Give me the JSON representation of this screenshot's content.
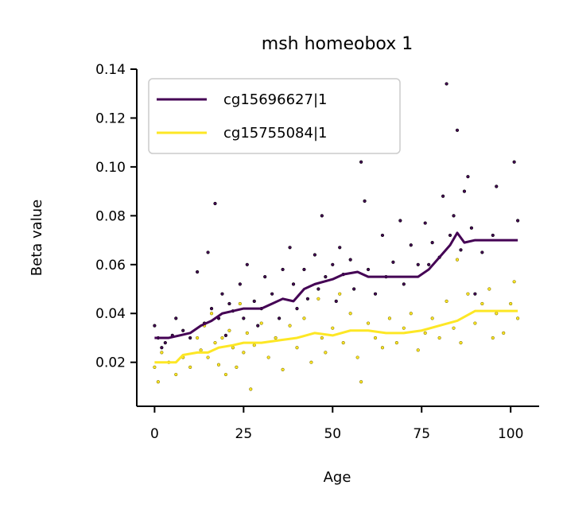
{
  "chart_data": {
    "type": "scatter",
    "title": "msh homeobox 1",
    "xlabel": "Age",
    "ylabel": "Beta value",
    "xlim": [
      -5,
      108
    ],
    "ylim": [
      0.002,
      0.14
    ],
    "xticks": [
      0,
      25,
      50,
      75,
      100
    ],
    "yticks": [
      0.02,
      0.04,
      0.06,
      0.08,
      0.1,
      0.12,
      0.14
    ],
    "xtick_labels": [
      "0",
      "25",
      "50",
      "75",
      "100"
    ],
    "ytick_labels": [
      "0.02",
      "0.04",
      "0.06",
      "0.08",
      "0.10",
      "0.12",
      "0.14"
    ],
    "grid": false,
    "legend_position": "top-left",
    "series": [
      {
        "name": "cg15696627|1",
        "color": "#440154",
        "trend": [
          [
            0,
            0.03
          ],
          [
            4,
            0.03
          ],
          [
            7,
            0.031
          ],
          [
            10,
            0.032
          ],
          [
            13,
            0.035
          ],
          [
            16,
            0.037
          ],
          [
            19,
            0.04
          ],
          [
            22,
            0.041
          ],
          [
            25,
            0.042
          ],
          [
            30,
            0.042
          ],
          [
            33,
            0.044
          ],
          [
            36,
            0.046
          ],
          [
            39,
            0.045
          ],
          [
            42,
            0.05
          ],
          [
            45,
            0.052
          ],
          [
            50,
            0.054
          ],
          [
            53,
            0.056
          ],
          [
            57,
            0.057
          ],
          [
            60,
            0.055
          ],
          [
            65,
            0.055
          ],
          [
            70,
            0.055
          ],
          [
            74,
            0.055
          ],
          [
            77,
            0.058
          ],
          [
            80,
            0.063
          ],
          [
            83,
            0.068
          ],
          [
            85,
            0.073
          ],
          [
            87,
            0.069
          ],
          [
            90,
            0.07
          ],
          [
            95,
            0.07
          ],
          [
            102,
            0.07
          ]
        ],
        "points": [
          [
            0,
            0.035
          ],
          [
            1,
            0.03
          ],
          [
            2,
            0.026
          ],
          [
            3,
            0.028
          ],
          [
            5,
            0.031
          ],
          [
            6,
            0.038
          ],
          [
            8,
            0.033
          ],
          [
            10,
            0.03
          ],
          [
            12,
            0.057
          ],
          [
            14,
            0.036
          ],
          [
            15,
            0.065
          ],
          [
            16,
            0.042
          ],
          [
            17,
            0.085
          ],
          [
            18,
            0.038
          ],
          [
            19,
            0.048
          ],
          [
            20,
            0.031
          ],
          [
            21,
            0.044
          ],
          [
            22,
            0.041
          ],
          [
            24,
            0.052
          ],
          [
            25,
            0.038
          ],
          [
            26,
            0.06
          ],
          [
            28,
            0.045
          ],
          [
            29,
            0.035
          ],
          [
            30,
            0.042
          ],
          [
            31,
            0.055
          ],
          [
            33,
            0.048
          ],
          [
            35,
            0.038
          ],
          [
            36,
            0.058
          ],
          [
            38,
            0.067
          ],
          [
            39,
            0.052
          ],
          [
            40,
            0.042
          ],
          [
            42,
            0.058
          ],
          [
            43,
            0.046
          ],
          [
            45,
            0.064
          ],
          [
            46,
            0.05
          ],
          [
            47,
            0.08
          ],
          [
            48,
            0.055
          ],
          [
            50,
            0.06
          ],
          [
            51,
            0.045
          ],
          [
            52,
            0.067
          ],
          [
            53,
            0.056
          ],
          [
            55,
            0.062
          ],
          [
            56,
            0.05
          ],
          [
            58,
            0.102
          ],
          [
            59,
            0.086
          ],
          [
            60,
            0.058
          ],
          [
            62,
            0.048
          ],
          [
            64,
            0.072
          ],
          [
            65,
            0.055
          ],
          [
            67,
            0.061
          ],
          [
            69,
            0.078
          ],
          [
            70,
            0.052
          ],
          [
            72,
            0.068
          ],
          [
            74,
            0.06
          ],
          [
            76,
            0.077
          ],
          [
            77,
            0.06
          ],
          [
            78,
            0.069
          ],
          [
            80,
            0.063
          ],
          [
            81,
            0.088
          ],
          [
            82,
            0.134
          ],
          [
            83,
            0.072
          ],
          [
            84,
            0.08
          ],
          [
            85,
            0.115
          ],
          [
            86,
            0.066
          ],
          [
            87,
            0.09
          ],
          [
            88,
            0.096
          ],
          [
            89,
            0.075
          ],
          [
            90,
            0.048
          ],
          [
            92,
            0.065
          ],
          [
            95,
            0.072
          ],
          [
            96,
            0.092
          ],
          [
            101,
            0.102
          ],
          [
            102,
            0.078
          ]
        ]
      },
      {
        "name": "cg15755084|1",
        "color": "#fde725",
        "trend": [
          [
            0,
            0.02
          ],
          [
            6,
            0.02
          ],
          [
            8,
            0.023
          ],
          [
            12,
            0.024
          ],
          [
            15,
            0.024
          ],
          [
            18,
            0.026
          ],
          [
            22,
            0.027
          ],
          [
            25,
            0.028
          ],
          [
            30,
            0.028
          ],
          [
            35,
            0.029
          ],
          [
            40,
            0.03
          ],
          [
            45,
            0.032
          ],
          [
            50,
            0.031
          ],
          [
            55,
            0.033
          ],
          [
            60,
            0.033
          ],
          [
            65,
            0.032
          ],
          [
            70,
            0.032
          ],
          [
            75,
            0.033
          ],
          [
            80,
            0.035
          ],
          [
            85,
            0.037
          ],
          [
            90,
            0.041
          ],
          [
            95,
            0.041
          ],
          [
            102,
            0.041
          ]
        ],
        "points": [
          [
            0,
            0.018
          ],
          [
            1,
            0.012
          ],
          [
            2,
            0.024
          ],
          [
            4,
            0.02
          ],
          [
            6,
            0.015
          ],
          [
            8,
            0.022
          ],
          [
            10,
            0.018
          ],
          [
            12,
            0.03
          ],
          [
            13,
            0.025
          ],
          [
            14,
            0.035
          ],
          [
            15,
            0.022
          ],
          [
            16,
            0.04
          ],
          [
            17,
            0.028
          ],
          [
            18,
            0.019
          ],
          [
            19,
            0.03
          ],
          [
            20,
            0.015
          ],
          [
            21,
            0.033
          ],
          [
            22,
            0.026
          ],
          [
            23,
            0.018
          ],
          [
            24,
            0.044
          ],
          [
            25,
            0.024
          ],
          [
            26,
            0.032
          ],
          [
            27,
            0.009
          ],
          [
            28,
            0.027
          ],
          [
            30,
            0.036
          ],
          [
            32,
            0.022
          ],
          [
            34,
            0.03
          ],
          [
            36,
            0.017
          ],
          [
            38,
            0.035
          ],
          [
            40,
            0.026
          ],
          [
            42,
            0.038
          ],
          [
            44,
            0.02
          ],
          [
            46,
            0.046
          ],
          [
            47,
            0.03
          ],
          [
            48,
            0.024
          ],
          [
            50,
            0.034
          ],
          [
            52,
            0.048
          ],
          [
            53,
            0.028
          ],
          [
            55,
            0.04
          ],
          [
            57,
            0.022
          ],
          [
            58,
            0.012
          ],
          [
            60,
            0.036
          ],
          [
            62,
            0.03
          ],
          [
            64,
            0.026
          ],
          [
            66,
            0.038
          ],
          [
            68,
            0.028
          ],
          [
            70,
            0.034
          ],
          [
            72,
            0.04
          ],
          [
            74,
            0.025
          ],
          [
            76,
            0.032
          ],
          [
            78,
            0.038
          ],
          [
            80,
            0.03
          ],
          [
            82,
            0.045
          ],
          [
            84,
            0.034
          ],
          [
            85,
            0.062
          ],
          [
            86,
            0.028
          ],
          [
            88,
            0.048
          ],
          [
            90,
            0.036
          ],
          [
            92,
            0.044
          ],
          [
            94,
            0.05
          ],
          [
            95,
            0.03
          ],
          [
            96,
            0.04
          ],
          [
            98,
            0.032
          ],
          [
            100,
            0.044
          ],
          [
            101,
            0.053
          ],
          [
            102,
            0.038
          ]
        ]
      }
    ]
  }
}
